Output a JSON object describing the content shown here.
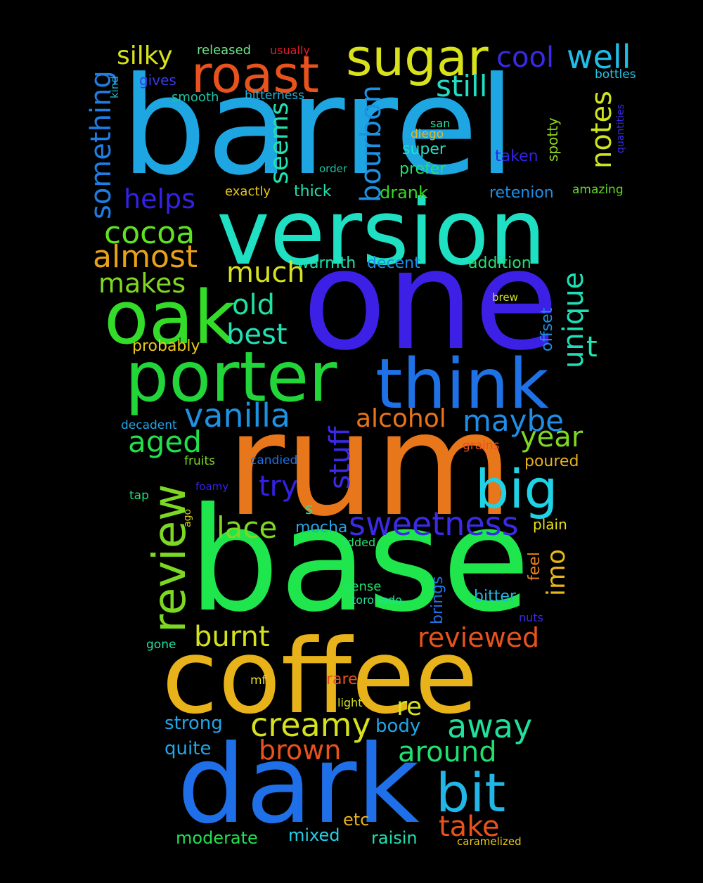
{
  "words": [
    {
      "text": "barrel",
      "color": "#1ea6e2"
    },
    {
      "text": "version",
      "color": "#20e0c4"
    },
    {
      "text": "one",
      "color": "#3d20e6"
    },
    {
      "text": "rum",
      "color": "#e8761a"
    },
    {
      "text": "base",
      "color": "#1fe64c"
    },
    {
      "text": "coffee",
      "color": "#e8b21a"
    },
    {
      "text": "dark",
      "color": "#1f6fe8"
    },
    {
      "text": "porter",
      "color": "#22d63a"
    },
    {
      "text": "think",
      "color": "#1f72e6"
    },
    {
      "text": "oak",
      "color": "#34dc2a"
    },
    {
      "text": "roast",
      "color": "#e8521c"
    },
    {
      "text": "sugar",
      "color": "#d8e21c"
    },
    {
      "text": "review",
      "color": "#7cd822"
    },
    {
      "text": "big",
      "color": "#20d2e6"
    },
    {
      "text": "bit",
      "color": "#22b6e6"
    },
    {
      "text": "sweetness",
      "color": "#3b2ae6"
    },
    {
      "text": "vanilla",
      "color": "#1e92e2"
    },
    {
      "text": "creamy",
      "color": "#d6e21e"
    },
    {
      "text": "well",
      "color": "#20bee6"
    },
    {
      "text": "cool",
      "color": "#3a2ae6"
    },
    {
      "text": "still",
      "color": "#22dec4"
    },
    {
      "text": "notes",
      "color": "#cfe41c"
    },
    {
      "text": "silky",
      "color": "#d6e21c"
    },
    {
      "text": "something",
      "color": "#1e7ee4"
    },
    {
      "text": "seems",
      "color": "#22e0b0"
    },
    {
      "text": "bourbon",
      "color": "#1e92e2"
    },
    {
      "text": "helps",
      "color": "#3322e6"
    },
    {
      "text": "cocoa",
      "color": "#5ee222"
    },
    {
      "text": "almost",
      "color": "#e8a21a"
    },
    {
      "text": "makes",
      "color": "#7ed822"
    },
    {
      "text": "much",
      "color": "#d6e21e"
    },
    {
      "text": "old",
      "color": "#22e0a0"
    },
    {
      "text": "best",
      "color": "#22e0b4"
    },
    {
      "text": "unique",
      "color": "#1ee0b4"
    },
    {
      "text": "t",
      "color": "#20e6b0"
    },
    {
      "text": "aged",
      "color": "#22e04c"
    },
    {
      "text": "alcohol",
      "color": "#e8741a"
    },
    {
      "text": "maybe",
      "color": "#1f8ee6"
    },
    {
      "text": "year",
      "color": "#7ed822"
    },
    {
      "text": "stuff",
      "color": "#3a2ae6"
    },
    {
      "text": "try",
      "color": "#3322e6"
    },
    {
      "text": "lace",
      "color": "#7ed822"
    },
    {
      "text": "imo",
      "color": "#e8b61a"
    },
    {
      "text": "burnt",
      "color": "#d6e21e"
    },
    {
      "text": "reviewed",
      "color": "#e8521c"
    },
    {
      "text": "away",
      "color": "#20e09c"
    },
    {
      "text": "brown",
      "color": "#e8521c"
    },
    {
      "text": "around",
      "color": "#22e070"
    },
    {
      "text": "take",
      "color": "#e8521c"
    },
    {
      "text": "re",
      "color": "#d6e21e"
    },
    {
      "text": "strong",
      "color": "#22a6e6"
    },
    {
      "text": "quite",
      "color": "#22a6e6"
    },
    {
      "text": "body",
      "color": "#22a6e6"
    },
    {
      "text": "moderate",
      "color": "#22e050"
    },
    {
      "text": "mixed",
      "color": "#22d0e6"
    },
    {
      "text": "raisin",
      "color": "#20e0b0"
    },
    {
      "text": "etc",
      "color": "#e8b21a"
    },
    {
      "text": "caramelized",
      "color": "#e8c81a"
    },
    {
      "text": "released",
      "color": "#6ee28a"
    },
    {
      "text": "usually",
      "color": "#e81a2c"
    },
    {
      "text": "kind",
      "color": "#1eb0c2"
    },
    {
      "text": "gives",
      "color": "#3a3ae6"
    },
    {
      "text": "smooth",
      "color": "#20c2a2"
    },
    {
      "text": "bitterness",
      "color": "#22b6e0"
    },
    {
      "text": "bottles",
      "color": "#22c6e6"
    },
    {
      "text": "quantities",
      "color": "#3a2ae6"
    },
    {
      "text": "spotty",
      "color": "#8ed622"
    },
    {
      "text": "san",
      "color": "#22e0a0"
    },
    {
      "text": "diego",
      "color": "#e8b81a"
    },
    {
      "text": "super",
      "color": "#20e0c8"
    },
    {
      "text": "taken",
      "color": "#3322e6"
    },
    {
      "text": "prefer",
      "color": "#22e070"
    },
    {
      "text": "order",
      "color": "#20c2a2"
    },
    {
      "text": "drank",
      "color": "#36d822"
    },
    {
      "text": "retenion",
      "color": "#1e8ee4"
    },
    {
      "text": "amazing",
      "color": "#62d822"
    },
    {
      "text": "exactly",
      "color": "#e8c81a"
    },
    {
      "text": "thick",
      "color": "#22e0b0"
    },
    {
      "text": "warmth",
      "color": "#22e0b0"
    },
    {
      "text": "decent",
      "color": "#1e8ee4"
    },
    {
      "text": "addition",
      "color": "#22e070"
    },
    {
      "text": "brew",
      "color": "#d6e21e"
    },
    {
      "text": "offset",
      "color": "#1e8ee4"
    },
    {
      "text": "probably",
      "color": "#e8c81a"
    },
    {
      "text": "decadent",
      "color": "#22a6e6"
    },
    {
      "text": "grains",
      "color": "#e8521c"
    },
    {
      "text": "fruits",
      "color": "#7ed822"
    },
    {
      "text": "candied",
      "color": "#1e72e4"
    },
    {
      "text": "poured",
      "color": "#e8b21a"
    },
    {
      "text": "foamy",
      "color": "#3322e6"
    },
    {
      "text": "tap",
      "color": "#22e070"
    },
    {
      "text": "ago",
      "color": "#d6d01e"
    },
    {
      "text": "s",
      "color": "#22e0a0"
    },
    {
      "text": "mocha",
      "color": "#22a6e6"
    },
    {
      "text": "plain",
      "color": "#e8e21a"
    },
    {
      "text": "added",
      "color": "#22e070"
    },
    {
      "text": "feel",
      "color": "#e8821a"
    },
    {
      "text": "brings",
      "color": "#1e72e4"
    },
    {
      "text": "sense",
      "color": "#22e070"
    },
    {
      "text": "toronado",
      "color": "#22e0a0"
    },
    {
      "text": "bitter",
      "color": "#22b6e6"
    },
    {
      "text": "nuts",
      "color": "#3a2ae6"
    },
    {
      "text": "gone",
      "color": "#22e0a0"
    },
    {
      "text": "mf",
      "color": "#e8e21a"
    },
    {
      "text": "rare",
      "color": "#e8521c"
    },
    {
      "text": "light",
      "color": "#d6e21e"
    }
  ]
}
